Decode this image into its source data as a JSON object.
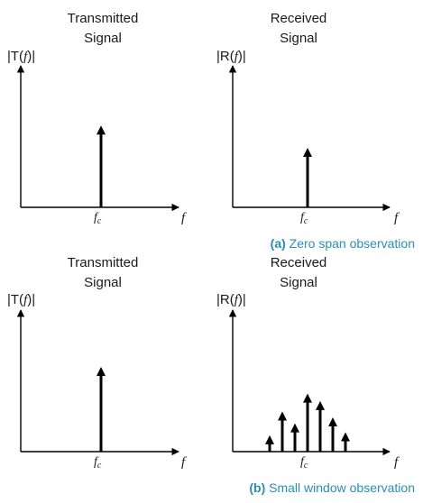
{
  "colors": {
    "ink": "#000000",
    "text": "#1a1a1a",
    "caption": "#2a8fb5"
  },
  "panels": [
    {
      "title_line1": "Transmitted",
      "title_line2": "Signal",
      "ylabel": "|T(",
      "ylabel_var": "f",
      "ylabel_end": ")|",
      "xlabel": "f",
      "tick_main": "f",
      "tick_sub": "c",
      "impulses": [
        0.55
      ]
    },
    {
      "title_line1": "Received",
      "title_line2": "Signal",
      "ylabel": "|R(",
      "ylabel_var": "f",
      "ylabel_end": ")|",
      "xlabel": "f",
      "tick_main": "f",
      "tick_sub": "c",
      "impulses": [
        0.4
      ]
    },
    {
      "title_line1": "Transmitted",
      "title_line2": "Signal",
      "ylabel": "|T(",
      "ylabel_var": "f",
      "ylabel_end": ")|",
      "xlabel": "f",
      "tick_main": "f",
      "tick_sub": "c",
      "impulses": [
        0.57
      ]
    },
    {
      "title_line1": "Received",
      "title_line2": "Signal",
      "ylabel": "|R(",
      "ylabel_var": "f",
      "ylabel_end": ")|",
      "xlabel": "f",
      "tick_main": "f",
      "tick_sub": "c",
      "impulses": [
        0.11,
        0.27,
        0.19,
        0.39,
        0.34,
        0.23,
        0.13
      ]
    }
  ],
  "captions": [
    {
      "tag": "(a)",
      "text": " Zero span observation"
    },
    {
      "tag": "(b)",
      "text": " Small window observation"
    }
  ]
}
